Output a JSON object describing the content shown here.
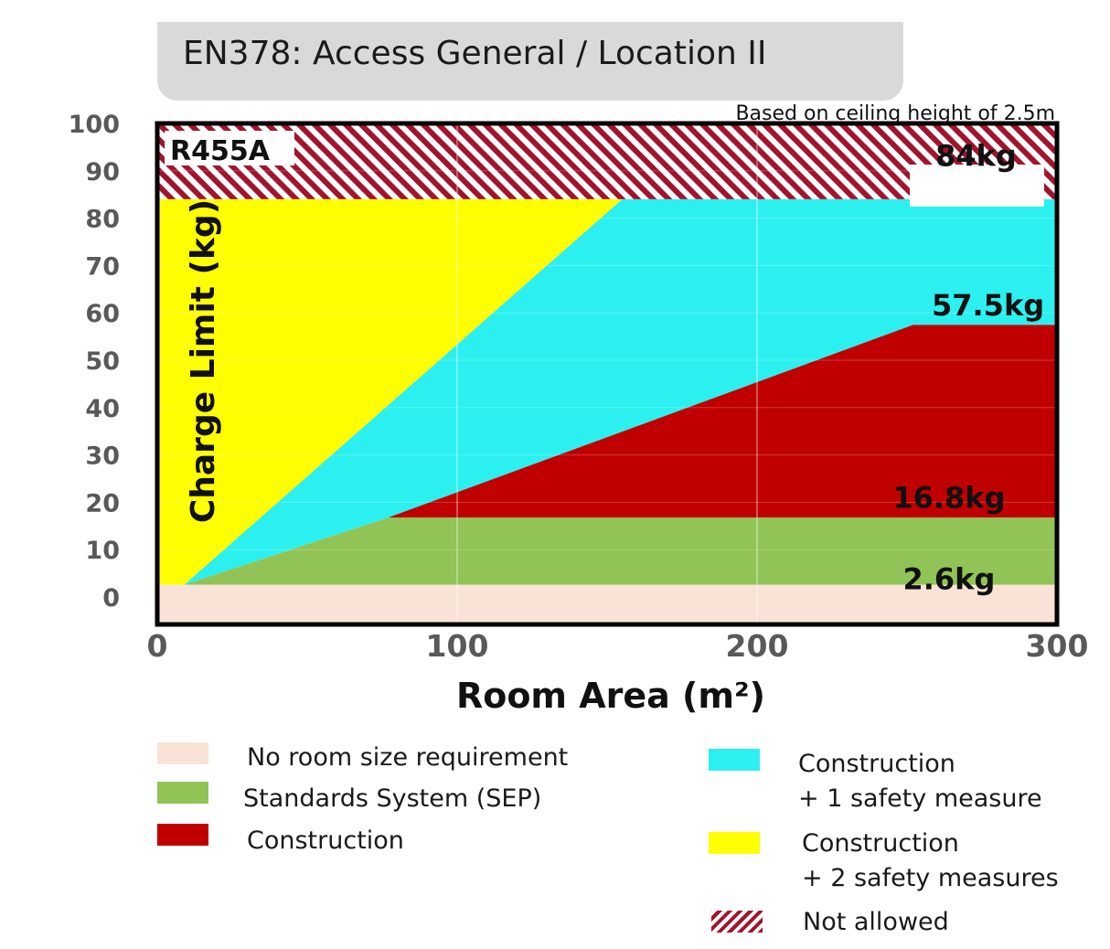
{
  "chart_data": {
    "type": "area",
    "title": "EN378: Access General / Location II",
    "subtitle": "Based on ceiling height of 2.5m",
    "refrigerant_label": "R455A",
    "xlabel": "Room Area (m²)",
    "ylabel": "Charge Limit (kg)",
    "xlim": [
      0,
      300
    ],
    "ylim": [
      0,
      100
    ],
    "x_ticks": [
      "0",
      "100",
      "200",
      "300"
    ],
    "y_ticks": [
      "0",
      "10",
      "20",
      "30",
      "40",
      "50",
      "60",
      "70",
      "80",
      "90",
      "100"
    ],
    "grid": true,
    "series": [
      {
        "name": "No room size requirement",
        "color": "#f8e3d6",
        "polygon": [
          [
            0,
            0
          ],
          [
            300,
            0
          ],
          [
            300,
            2.6
          ],
          [
            0,
            2.6
          ]
        ]
      },
      {
        "name": "Standards System (SEP)",
        "color": "#92c356",
        "polygon": [
          [
            9,
            2.6
          ],
          [
            77,
            16.8
          ],
          [
            300,
            16.8
          ],
          [
            300,
            2.6
          ]
        ]
      },
      {
        "name": "Construction",
        "color": "#c00000",
        "polygon": [
          [
            77,
            16.8
          ],
          [
            252,
            57.5
          ],
          [
            300,
            57.5
          ],
          [
            300,
            16.8
          ]
        ]
      },
      {
        "name": "Construction\n+ 1 safety measure",
        "color": "#2cf0f0",
        "polygon": [
          [
            9,
            2.6
          ],
          [
            155,
            84
          ],
          [
            300,
            84
          ],
          [
            300,
            57.5
          ],
          [
            252,
            57.5
          ],
          [
            77,
            16.8
          ]
        ]
      },
      {
        "name": "Construction\n+ 2 safety measures",
        "color": "#ffff00",
        "polygon": [
          [
            0,
            2.6
          ],
          [
            0,
            84
          ],
          [
            155,
            84
          ],
          [
            9,
            2.6
          ]
        ]
      },
      {
        "name": "Not allowed",
        "color": "#a3142c",
        "pattern": "hatch",
        "polygon": [
          [
            0,
            84
          ],
          [
            0,
            100
          ],
          [
            300,
            100
          ],
          [
            300,
            84
          ]
        ]
      }
    ],
    "annotations": [
      {
        "text": "84kg",
        "x": 273,
        "y": 91
      },
      {
        "text": "57.5kg",
        "x": 277,
        "y": 59.5
      },
      {
        "text": "16.8kg",
        "x": 264,
        "y": 18.8
      },
      {
        "text": "2.6kg",
        "x": 264,
        "y": 1.6
      }
    ],
    "legend": {
      "placement": "bottom",
      "items": [
        {
          "line1": "No room size requirement",
          "line2": "",
          "color": "#f8e3d6"
        },
        {
          "line1": "Standards System (SEP)",
          "line2": "",
          "color": "#92c356"
        },
        {
          "line1": "Construction",
          "line2": "",
          "color": "#c00000"
        },
        {
          "line1": "Construction",
          "line2": "+ 1 safety measure",
          "color": "#2cf0f0"
        },
        {
          "line1": "Construction",
          "line2": "+ 2 safety measures",
          "color": "#ffff00"
        },
        {
          "line1": "Not allowed",
          "line2": "",
          "color": "#a3142c",
          "pattern": "hatch"
        }
      ]
    }
  }
}
